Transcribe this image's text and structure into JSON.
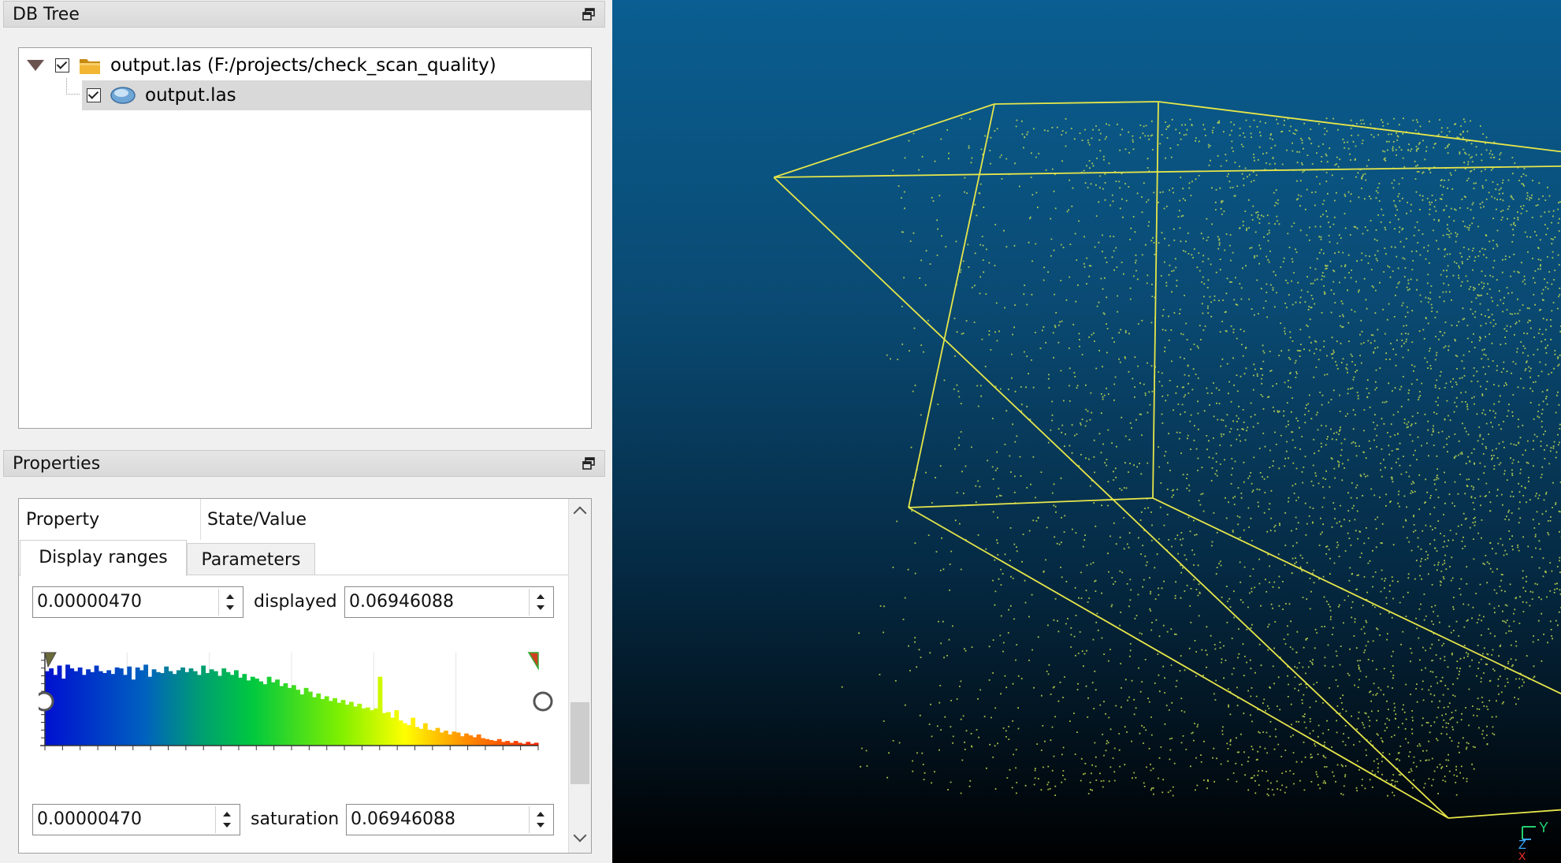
{
  "db_tree": {
    "title": "DB Tree",
    "root": {
      "label": "output.las (F:/projects/check_scan_quality)",
      "checked": true,
      "icon": "folder-icon"
    },
    "child": {
      "label": "output.las",
      "checked": true,
      "icon": "point-cloud-icon",
      "selected": true
    }
  },
  "properties": {
    "title": "Properties",
    "header": {
      "property": "Property",
      "state_value": "State/Value"
    },
    "tabs": [
      {
        "label": "Display ranges",
        "active": true
      },
      {
        "label": "Parameters",
        "active": false
      }
    ],
    "displayed": {
      "label": "displayed",
      "min": "0.00000470",
      "max": "0.06946088"
    },
    "saturation": {
      "label": "saturation",
      "min": "0.00000470",
      "max": "0.06946088"
    },
    "histogram": {
      "bin_heights": [
        0.8,
        0.83,
        0.76,
        0.86,
        0.72,
        0.87,
        0.83,
        0.8,
        0.84,
        0.76,
        0.82,
        0.79,
        0.86,
        0.8,
        0.78,
        0.81,
        0.77,
        0.84,
        0.83,
        0.76,
        0.85,
        0.71,
        0.84,
        0.81,
        0.87,
        0.74,
        0.82,
        0.79,
        0.78,
        0.85,
        0.8,
        0.77,
        0.81,
        0.84,
        0.79,
        0.83,
        0.8,
        0.76,
        0.86,
        0.78,
        0.82,
        0.8,
        0.75,
        0.83,
        0.79,
        0.76,
        0.81,
        0.73,
        0.77,
        0.7,
        0.74,
        0.72,
        0.69,
        0.66,
        0.74,
        0.68,
        0.71,
        0.64,
        0.67,
        0.62,
        0.65,
        0.6,
        0.55,
        0.62,
        0.58,
        0.52,
        0.56,
        0.5,
        0.53,
        0.48,
        0.51,
        0.46,
        0.49,
        0.44,
        0.47,
        0.42,
        0.45,
        0.4,
        0.41,
        0.38,
        0.4,
        0.74,
        0.35,
        0.36,
        0.3,
        0.38,
        0.27,
        0.24,
        0.22,
        0.3,
        0.2,
        0.18,
        0.24,
        0.17,
        0.16,
        0.19,
        0.14,
        0.16,
        0.12,
        0.15,
        0.14,
        0.1,
        0.13,
        0.11,
        0.09,
        0.12,
        0.08,
        0.07,
        0.06,
        0.05,
        0.07,
        0.04,
        0.05,
        0.03,
        0.05,
        0.03,
        0.02,
        0.04,
        0.02,
        0.03
      ]
    }
  },
  "view3d": {
    "axis_labels": {
      "y": "Y",
      "z": "Z",
      "x": "X"
    },
    "colors": {
      "box": "#e6e64a",
      "points": "#c8e050",
      "axis_y": "#22d070",
      "axis_z": "#3aa8ff",
      "axis_x": "#ff3030"
    }
  }
}
